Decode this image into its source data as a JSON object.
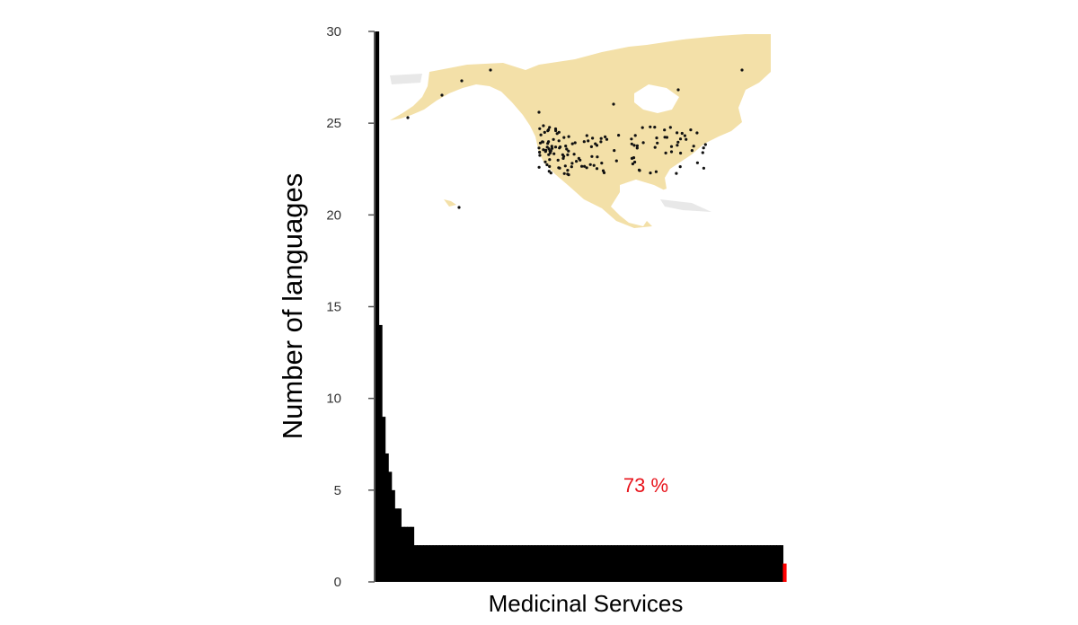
{
  "chart_data": {
    "type": "bar",
    "title": "",
    "xlabel": "Medicinal Services",
    "ylabel": "Number of languages",
    "ylim": [
      0,
      30
    ],
    "yticks": [
      0,
      5,
      10,
      15,
      20,
      25,
      30
    ],
    "grid": false,
    "annotation": "73 %",
    "series": [
      {
        "values": [
          30,
          14,
          9,
          7,
          6,
          5,
          4,
          4,
          3,
          3,
          3,
          3,
          2,
          2,
          2,
          2,
          2,
          2,
          2,
          2,
          2,
          2,
          2,
          2,
          2,
          2,
          2,
          2,
          2,
          2,
          2,
          2,
          2,
          2,
          2,
          2,
          2,
          2,
          2,
          2,
          2,
          2,
          2,
          2,
          2,
          2,
          2,
          2,
          2,
          2,
          2,
          2,
          2,
          2,
          2,
          2,
          2,
          2,
          2,
          2,
          2,
          2,
          2,
          2,
          2,
          2,
          2,
          2,
          2,
          2,
          2,
          2,
          2,
          2,
          2,
          2,
          2,
          2,
          2,
          2,
          2,
          2,
          2,
          2,
          2,
          2,
          2,
          2,
          2,
          2,
          2,
          2,
          2,
          2,
          2,
          2,
          2,
          2,
          2,
          2,
          2,
          2,
          2,
          2,
          2,
          2,
          2,
          2,
          2,
          2,
          2,
          2,
          2,
          2,
          2,
          2,
          2,
          2,
          2,
          2,
          2,
          2,
          2,
          2,
          2,
          2,
          2,
          2,
          1
        ]
      }
    ],
    "highlight": {
      "value": 1,
      "color": "#ff0000"
    },
    "colors": {
      "bars": "#000000",
      "highlight": "#ff0000",
      "annotation": "#e8141c",
      "map_land": "#f3e0a8",
      "map_other": "#e8e8e8",
      "map_points": "#111111"
    },
    "inset_map": {
      "content": "map of North America with language sample locations"
    }
  }
}
